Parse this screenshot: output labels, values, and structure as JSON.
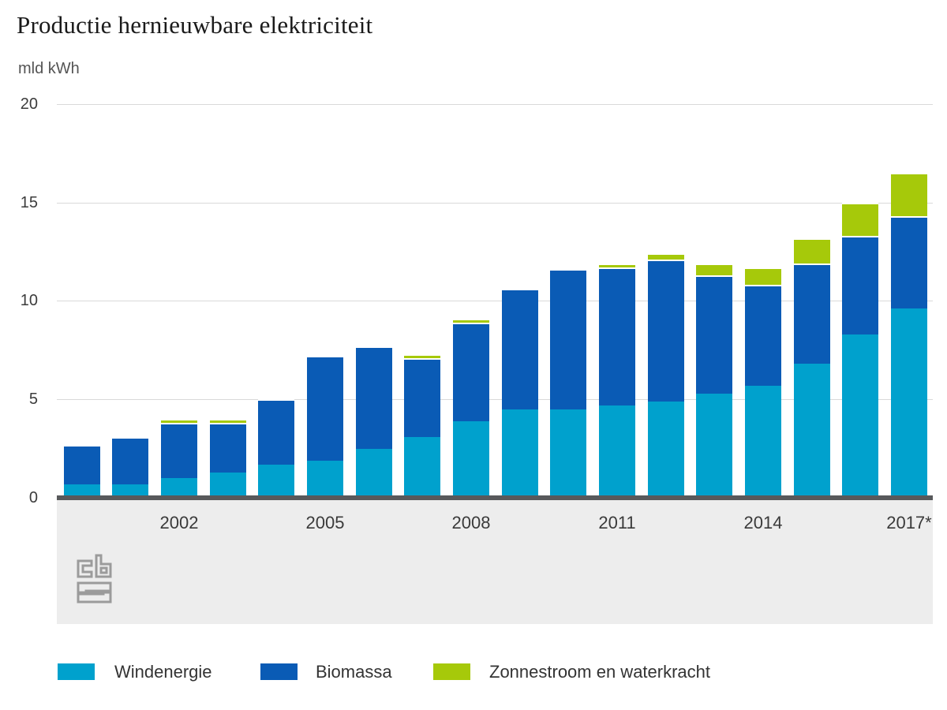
{
  "title": "Productie hernieuwbare elektriciteit",
  "unit_label": "mld kWh",
  "chart_data": {
    "type": "bar",
    "stacked": true,
    "title": "Productie hernieuwbare elektriciteit",
    "ylabel": "mld kWh",
    "xlabel": "",
    "ylim": [
      0,
      20
    ],
    "yticks": [
      0,
      5,
      10,
      15,
      20
    ],
    "grid": "horizontal",
    "legend_position": "bottom",
    "categories": [
      2000,
      2001,
      2002,
      2003,
      2004,
      2005,
      2006,
      2007,
      2008,
      2009,
      2010,
      2011,
      2012,
      2013,
      2014,
      2015,
      2016,
      2017
    ],
    "x_tick_labels": [
      "2002",
      "2005",
      "2008",
      "2011",
      "2014",
      "2017*"
    ],
    "series": [
      {
        "name": "Windenergie",
        "color": "#00a1cd",
        "values": [
          0.7,
          0.7,
          1.0,
          1.3,
          1.7,
          1.9,
          2.5,
          3.1,
          3.9,
          4.5,
          4.5,
          4.7,
          4.9,
          5.3,
          5.7,
          6.8,
          8.3,
          9.6
        ]
      },
      {
        "name": "Biomassa",
        "color": "#0a5bb5",
        "values": [
          2.0,
          2.4,
          2.8,
          2.5,
          3.3,
          5.3,
          5.2,
          4.0,
          5.0,
          6.1,
          7.1,
          7.0,
          7.2,
          6.0,
          5.1,
          5.1,
          5.0,
          4.7
        ]
      },
      {
        "name": "Zonnestroom en waterkracht",
        "color": "#a6c90a",
        "values": [
          0,
          0,
          0.2,
          0.2,
          0,
          0.1,
          0,
          0.2,
          0.2,
          0,
          0,
          0.2,
          0.3,
          0.6,
          0.9,
          1.3,
          1.7,
          2.2
        ]
      }
    ]
  },
  "colors": {
    "axis": "#58595b",
    "gridline": "#d9d9d9",
    "footer_panel": "#ededed",
    "logo_gray": "#9b9b9b",
    "text": "#3a3a3a"
  },
  "logo_name": "cbs-logo"
}
